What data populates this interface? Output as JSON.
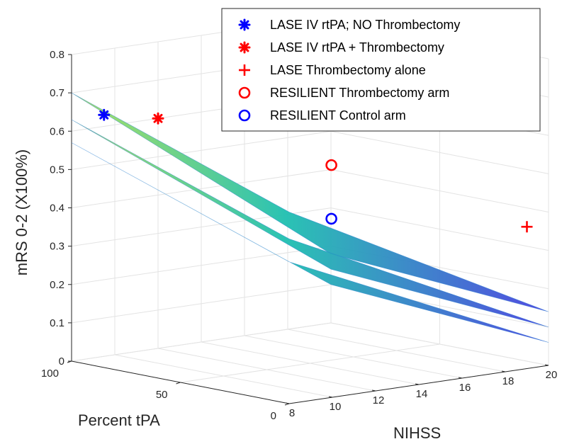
{
  "chart_data": {
    "type": "surface3d",
    "xlabel": "NIHSS",
    "ylabel": "Percent tPA",
    "zlabel": "mRS 0-2 (X100%)",
    "xlim": [
      8,
      20
    ],
    "ylim": [
      0,
      100
    ],
    "zlim": [
      0,
      0.8
    ],
    "x_ticks": [
      "8",
      "10",
      "12",
      "14",
      "16",
      "18",
      "20"
    ],
    "y_ticks": [
      "0",
      "50",
      "100"
    ],
    "z_ticks": [
      "0",
      "0.1",
      "0.2",
      "0.3",
      "0.4",
      "0.5",
      "0.6",
      "0.7",
      "0.8"
    ],
    "grid": true,
    "legend_position": "top-right",
    "colors": {
      "blue": "#0000ff",
      "red": "#ff0000",
      "surface_high": "#a8e05a",
      "surface_mid": "#1fbfb0",
      "surface_low": "#4a40e0"
    },
    "series": [
      {
        "name": "LASE IV rtPA; NO Thrombectomy",
        "marker": "asterisk",
        "color": "#0000ff",
        "points": [
          {
            "x": 9.5,
            "y": 100,
            "z": 0.63
          }
        ]
      },
      {
        "name": "LASE IV rtPA + Thrombectomy",
        "marker": "asterisk",
        "color": "#ff0000",
        "points": [
          {
            "x": 12,
            "y": 100,
            "z": 0.6
          }
        ]
      },
      {
        "name": "LASE Thrombectomy alone",
        "marker": "plus",
        "color": "#ff0000",
        "points": [
          {
            "x": 19,
            "y": 0,
            "z": 0.37
          }
        ]
      },
      {
        "name": "RESILIENT Thrombectomy arm",
        "marker": "circle",
        "color": "#ff0000",
        "points": [
          {
            "x": 17,
            "y": 70,
            "z": 0.47
          }
        ]
      },
      {
        "name": "RESILIENT Control arm",
        "marker": "circle",
        "color": "#0000ff",
        "points": [
          {
            "x": 17,
            "y": 70,
            "z": 0.33
          }
        ]
      }
    ],
    "surfaces": [
      {
        "z_at_x8": {
          "y0": 0.5,
          "y100": 0.7
        },
        "z_at_x20": {
          "y0": 0.14,
          "y100": 0.18
        }
      },
      {
        "z_at_x8": {
          "y0": 0.43,
          "y100": 0.63
        },
        "z_at_x20": {
          "y0": 0.1,
          "y100": 0.14
        }
      },
      {
        "z_at_x8": {
          "y0": 0.37,
          "y100": 0.57
        },
        "z_at_x20": {
          "y0": 0.06,
          "y100": 0.1
        }
      }
    ]
  }
}
